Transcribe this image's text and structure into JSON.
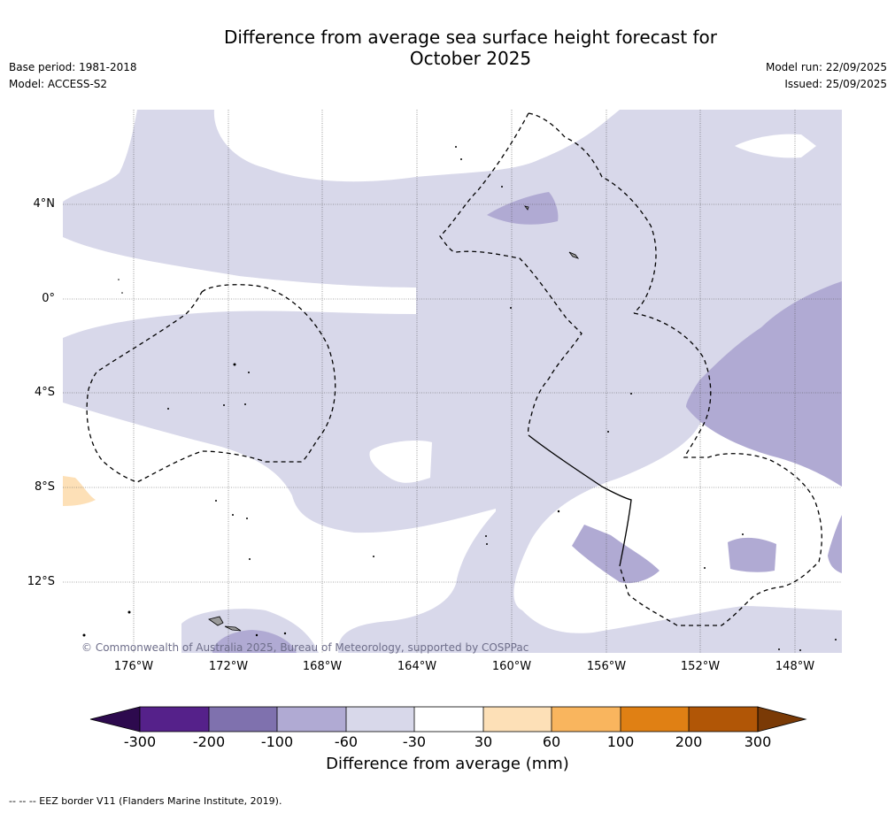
{
  "title": {
    "line1": "Difference from average sea surface height forecast for",
    "line2": "October 2025"
  },
  "meta_left": {
    "base_period": "Base period: 1981-2018",
    "model": "Model: ACCESS-S2"
  },
  "meta_right": {
    "model_run": "Model run: 22/09/2025",
    "issued": "Issued: 25/09/2025"
  },
  "map": {
    "lat_labels": [
      "4°N",
      "0°",
      "4°S",
      "8°S",
      "12°S"
    ],
    "lon_labels": [
      "176°W",
      "172°W",
      "168°W",
      "164°W",
      "160°W",
      "156°W",
      "152°W",
      "148°W"
    ],
    "copyright": "© Commonwealth of Australia 2025, Bureau of Meteorology, supported by COSPPac",
    "colors": {
      "very_light_purple": "#d8d8ea",
      "light_purple": "#b0aad3",
      "light_orange": "#fde0b7",
      "land": "#9a9a9a"
    }
  },
  "colorbar": {
    "ticks": [
      "-300",
      "-200",
      "-100",
      "-60",
      "-30",
      "30",
      "60",
      "100",
      "200",
      "300"
    ],
    "colors": [
      "#2d0a4e",
      "#55218a",
      "#7f71ae",
      "#b0aad3",
      "#d8d8ea",
      "#ffffff",
      "#fde0b7",
      "#f9b55e",
      "#e08014",
      "#b15606",
      "#7a3a06"
    ],
    "label": "Difference from average (mm)"
  },
  "footer": {
    "text": "--  --  -- EEZ border V11 (Flanders Marine Institute, 2019)."
  }
}
